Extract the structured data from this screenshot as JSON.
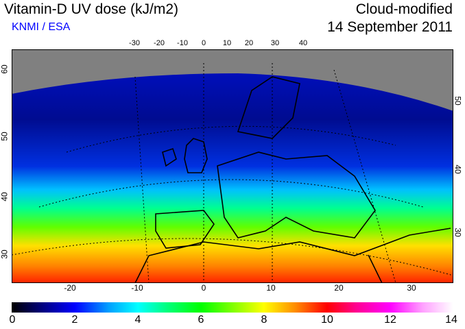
{
  "header": {
    "title": "Vitamin-D UV dose (kJ/m2)",
    "source": "KNMI / ESA",
    "mode": "Cloud-modified",
    "date": "14 September 2011"
  },
  "map": {
    "top_lon_ticks": [
      "-30",
      "-20",
      "-10",
      "0",
      "10",
      "20",
      "30",
      "40"
    ],
    "bottom_lon_ticks": [
      "-20",
      "-10",
      "0",
      "10",
      "20",
      "30"
    ],
    "left_lat_ticks": [
      "60",
      "50",
      "40",
      "30"
    ],
    "right_lat_ticks": [
      "50",
      "40",
      "30"
    ],
    "no_data_color": "#808080"
  },
  "colorbar": {
    "labels": [
      "0",
      "2",
      "4",
      "6",
      "8",
      "10",
      "12",
      "14"
    ],
    "min": 0,
    "max": 14
  }
}
